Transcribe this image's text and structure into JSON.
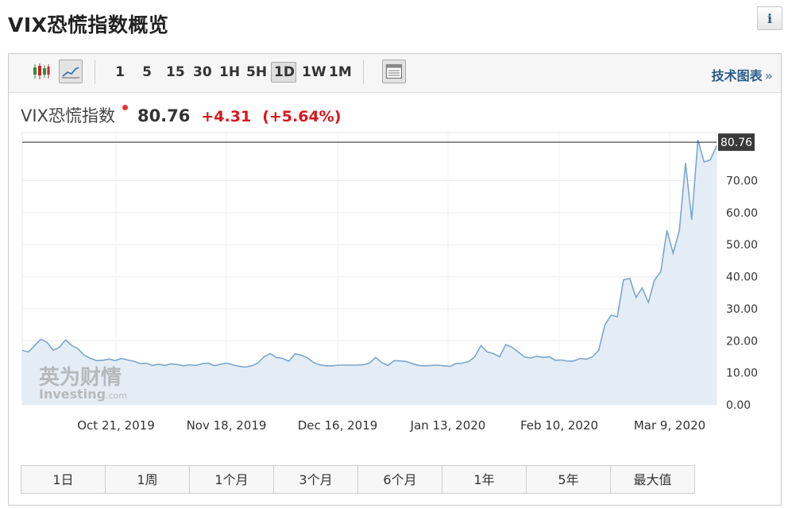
{
  "page": {
    "title": "VIX恐慌指数概览",
    "info_icon": "info-icon"
  },
  "toolbar": {
    "icons": [
      "candlestick-chart-icon",
      "line-chart-icon",
      "overview-table-icon"
    ],
    "intervals": [
      "1",
      "5",
      "15",
      "30",
      "1H",
      "5H",
      "1D",
      "1W",
      "1M"
    ],
    "active_interval": "1D",
    "tech_chart_label": "技术图表",
    "tech_chart_arrow": "»"
  },
  "quote": {
    "name": "VIX恐慌指数",
    "price": "80.76",
    "change": "+4.31",
    "change_pct": "(+5.64%)",
    "status_dot_color": "#e33333",
    "change_color": "#d9161c"
  },
  "watermark": {
    "cn": "英为财情",
    "en_main": "Investing",
    "en_suffix": ".com"
  },
  "chart_data": {
    "type": "area",
    "y_ticks": [
      0,
      10,
      20,
      30,
      40,
      50,
      60,
      70
    ],
    "y_tick_labels": [
      "0.00",
      "10.00",
      "20.00",
      "30.00",
      "40.00",
      "50.00",
      "60.00",
      "70.00"
    ],
    "ylim": [
      0,
      85
    ],
    "x_tick_labels": [
      "Oct 21, 2019",
      "Nov 18, 2019",
      "Dec 16, 2019",
      "Jan 13, 2020",
      "Feb 10, 2020",
      "Mar 9, 2020"
    ],
    "current_value_label": "80.76",
    "current_value": 80.76,
    "line_color": "#7aa6cf",
    "fill_color": "#e4edf5",
    "values": [
      17.0,
      16.5,
      18.5,
      20.5,
      19.5,
      17.0,
      18.0,
      20.3,
      18.5,
      17.5,
      15.5,
      14.5,
      13.8,
      13.9,
      14.3,
      13.8,
      14.5,
      14.0,
      13.6,
      12.9,
      13.0,
      12.3,
      12.7,
      12.3,
      12.8,
      12.6,
      12.2,
      12.5,
      12.3,
      12.8,
      13.0,
      12.2,
      12.7,
      13.0,
      12.5,
      12.0,
      11.8,
      12.2,
      13.0,
      15.0,
      16.0,
      14.8,
      14.5,
      13.6,
      15.9,
      15.5,
      14.7,
      13.2,
      12.5,
      12.2,
      12.2,
      12.4,
      12.4,
      12.4,
      12.4,
      12.5,
      13.0,
      14.8,
      13.2,
      12.3,
      13.8,
      13.7,
      13.5,
      12.8,
      12.3,
      12.2,
      12.3,
      12.4,
      12.2,
      12.0,
      12.9,
      13.0,
      13.5,
      15.0,
      18.5,
      16.5,
      16.0,
      15.0,
      18.8,
      18.0,
      16.5,
      15.0,
      14.6,
      15.2,
      14.8,
      15.0,
      13.9,
      14.0,
      13.6,
      13.7,
      14.5,
      14.2,
      15.0,
      17.0,
      25.0,
      28.0,
      27.5,
      39.0,
      39.5,
      33.5,
      36.5,
      32.0,
      39.0,
      41.5,
      54.5,
      47.3,
      54.4,
      75.5,
      57.8,
      82.7,
      75.8,
      76.5,
      80.76
    ]
  },
  "range_buttons": [
    "1日",
    "1周",
    "1个月",
    "3个月",
    "6个月",
    "1年",
    "5年",
    "最大值"
  ]
}
